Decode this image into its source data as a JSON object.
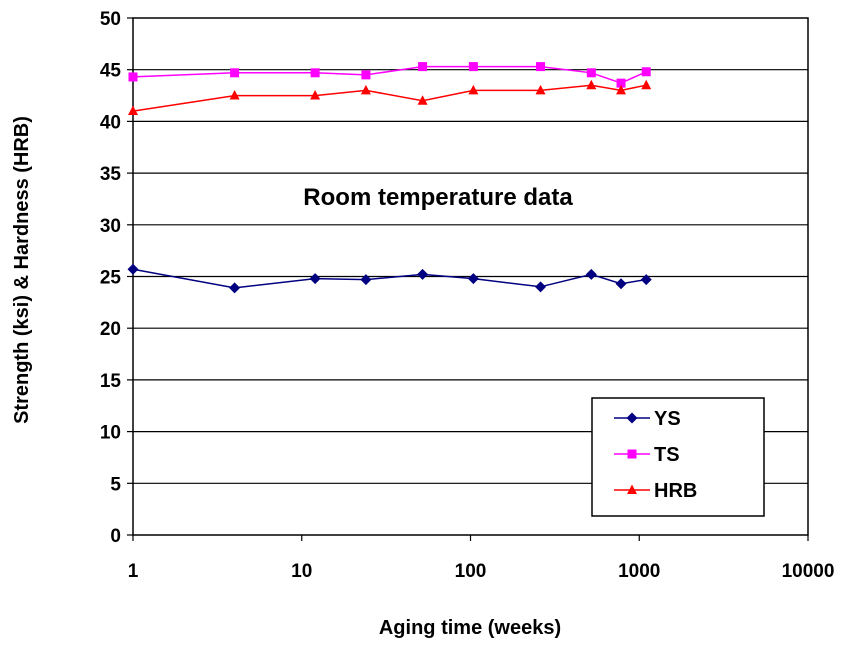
{
  "chart_data": {
    "type": "line",
    "title": "",
    "annotation": "Room temperature data",
    "xlabel": "Aging time (weeks)",
    "ylabel": "Strength (ksi) & Hardness (HRB)",
    "x_scale": "log",
    "xlim": [
      1,
      10000
    ],
    "ylim": [
      0,
      50
    ],
    "x_ticks": [
      1,
      10,
      100,
      1000,
      10000
    ],
    "x_tick_labels": [
      "1",
      "10",
      "100",
      "1000",
      "10000"
    ],
    "y_ticks": [
      0,
      5,
      10,
      15,
      20,
      25,
      30,
      35,
      40,
      45,
      50
    ],
    "y_tick_labels": [
      "0",
      "5",
      "10",
      "15",
      "20",
      "25",
      "30",
      "35",
      "40",
      "45",
      "50"
    ],
    "grid": "horizontal",
    "legend_position": "bottom-right",
    "series": [
      {
        "name": "YS",
        "color": "#000080",
        "marker": "diamond",
        "x": [
          1,
          4,
          12,
          24,
          52,
          104,
          260,
          520,
          780,
          1100
        ],
        "y": [
          25.7,
          23.9,
          24.8,
          24.7,
          25.2,
          24.8,
          24.0,
          25.2,
          24.3,
          24.7
        ]
      },
      {
        "name": "TS",
        "color": "#FF00FF",
        "marker": "square",
        "x": [
          1,
          4,
          12,
          24,
          52,
          104,
          260,
          520,
          780,
          1100
        ],
        "y": [
          44.3,
          44.7,
          44.7,
          44.5,
          45.3,
          45.3,
          45.3,
          44.7,
          43.7,
          44.8
        ]
      },
      {
        "name": "HRB",
        "color": "#FF0000",
        "marker": "triangle",
        "x": [
          1,
          4,
          12,
          24,
          52,
          104,
          260,
          520,
          780,
          1100
        ],
        "y": [
          41.0,
          42.5,
          42.5,
          43.0,
          42.0,
          43.0,
          43.0,
          43.5,
          43.0,
          43.5
        ]
      }
    ]
  }
}
